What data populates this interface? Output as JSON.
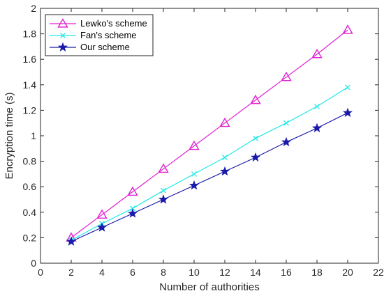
{
  "chart_data": {
    "type": "line",
    "xlabel": "Number of authorities",
    "ylabel": "Encryption time (s)",
    "xlim": [
      0,
      22
    ],
    "ylim": [
      0,
      2
    ],
    "xticks": [
      0,
      2,
      4,
      6,
      8,
      10,
      12,
      14,
      16,
      18,
      20,
      22
    ],
    "yticks": [
      0,
      0.2,
      0.4,
      0.6,
      0.8,
      1,
      1.2,
      1.4,
      1.6,
      1.8,
      2
    ],
    "xtick_labels": [
      "0",
      "2",
      "4",
      "6",
      "8",
      "10",
      "12",
      "14",
      "16",
      "18",
      "20",
      "22"
    ],
    "ytick_labels": [
      "0",
      "0.2",
      "0.4",
      "0.6",
      "0.8",
      "1",
      "1.2",
      "1.4",
      "1.6",
      "1.8",
      "2"
    ],
    "grid": false,
    "legend_position": "top-left",
    "x": [
      2,
      4,
      6,
      8,
      10,
      12,
      14,
      16,
      18,
      20
    ],
    "series": [
      {
        "name": "Lewko's scheme",
        "color": "#e020d0",
        "marker": "triangle",
        "values": [
          0.2,
          0.38,
          0.56,
          0.74,
          0.92,
          1.1,
          1.28,
          1.46,
          1.64,
          1.83
        ]
      },
      {
        "name": "Fan's scheme",
        "color": "#22e8e8",
        "marker": "x",
        "values": [
          0.18,
          0.31,
          0.43,
          0.57,
          0.7,
          0.83,
          0.98,
          1.1,
          1.23,
          1.38
        ]
      },
      {
        "name": "Our scheme",
        "color": "#1a1aa8",
        "marker": "star",
        "values": [
          0.17,
          0.28,
          0.39,
          0.5,
          0.61,
          0.72,
          0.83,
          0.95,
          1.06,
          1.18
        ]
      }
    ]
  }
}
